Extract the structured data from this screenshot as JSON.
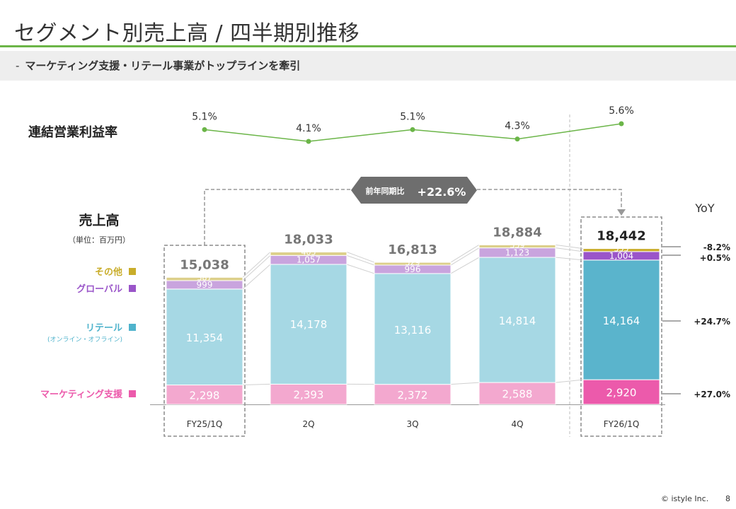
{
  "page": {
    "title": "セグメント別売上高 / 四半期別推移",
    "subtitle_dash": "-",
    "subtitle": "マーケティング支援・リテール事業がトップラインを牽引",
    "footer": "© istyle Inc.",
    "page_number": "8"
  },
  "chart_data": {
    "type": "bar",
    "stacked": true,
    "title": "売上高",
    "unit_label": "（単位：百万円）",
    "margin_title": "連結営業利益率",
    "categories": [
      "FY25/1Q",
      "2Q",
      "3Q",
      "4Q",
      "FY26/1Q"
    ],
    "series": [
      {
        "name": "マーケティング支援",
        "values": [
          2298,
          2393,
          2372,
          2588,
          2920
        ],
        "labels": [
          "2,298",
          "2,393",
          "2,372",
          "2,588",
          "2,920"
        ],
        "color": "#f3a8cf",
        "highlight": "#ec5aab",
        "legend_color": "#ec5aab"
      },
      {
        "name": "リテール",
        "sub_name": "(オンライン・オフライン)",
        "values": [
          11354,
          14178,
          13116,
          14814,
          14164
        ],
        "labels": [
          "11,354",
          "14,178",
          "13,116",
          "14,814",
          "14,164"
        ],
        "color": "#a6d8e4",
        "highlight": "#5ab4cc",
        "legend_color": "#4fb3cc"
      },
      {
        "name": "グローバル",
        "values": [
          999,
          1057,
          996,
          1123,
          1004
        ],
        "labels": [
          "999",
          "1,057",
          "996",
          "1,123",
          "1,004"
        ],
        "color": "#c9a4de",
        "highlight": "#9a55c9",
        "legend_color": "#9a55c9"
      },
      {
        "name": "その他",
        "values": [
          387,
          405,
          329,
          359,
          355
        ],
        "labels": [
          "387",
          "405",
          "329",
          "359",
          "355"
        ],
        "color": "#dccf8a",
        "highlight": "#c9ad2a",
        "legend_color": "#c9ad2a"
      }
    ],
    "totals": [
      "15,038",
      "18,033",
      "16,813",
      "18,884",
      "18,442"
    ],
    "operating_margin": [
      5.1,
      4.1,
      5.1,
      4.3,
      5.6
    ],
    "operating_margin_labels": [
      "5.1%",
      "4.1%",
      "5.1%",
      "4.3%",
      "5.6%"
    ],
    "yoy": {
      "header": "YoY",
      "badge_label": "前年同期比",
      "badge_value": "+22.6%",
      "by_segment": [
        "+27.0%",
        "+24.7%",
        "+0.5%",
        "-8.2%"
      ]
    },
    "highlight_index": 4,
    "compare_index": 0
  }
}
